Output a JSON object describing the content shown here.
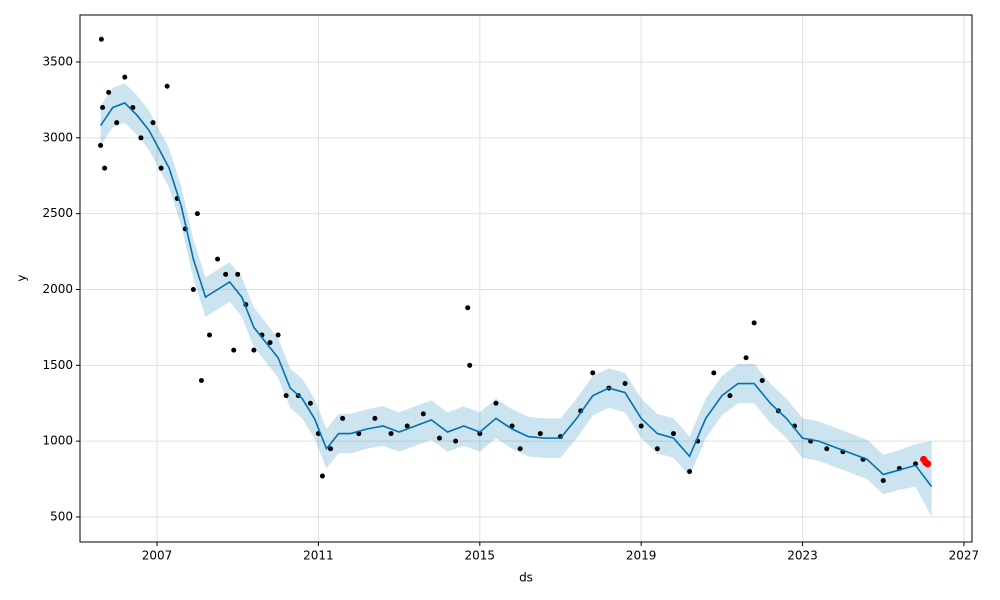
{
  "chart_data": {
    "type": "forecast",
    "x_label": "ds",
    "y_label": "y",
    "xlim": [
      2005.09,
      2027.2
    ],
    "ylim": [
      335,
      3810
    ],
    "xticks": [
      2007,
      2011,
      2015,
      2019,
      2023,
      2027
    ],
    "yticks": [
      500,
      1000,
      1500,
      2000,
      2500,
      3000,
      3500
    ],
    "grid": true,
    "x": [
      2005.6,
      2005.9,
      2006.2,
      2006.5,
      2006.8,
      2007.0,
      2007.3,
      2007.6,
      2007.9,
      2008.2,
      2008.5,
      2008.8,
      2009.1,
      2009.4,
      2009.7,
      2010.0,
      2010.3,
      2010.6,
      2010.9,
      2011.2,
      2011.5,
      2011.8,
      2012.2,
      2012.6,
      2013.0,
      2013.4,
      2013.8,
      2014.2,
      2014.6,
      2015.0,
      2015.4,
      2015.8,
      2016.2,
      2016.6,
      2017.0,
      2017.4,
      2017.8,
      2018.2,
      2018.6,
      2019.0,
      2019.4,
      2019.8,
      2020.2,
      2020.6,
      2021.0,
      2021.4,
      2021.8,
      2022.2,
      2022.6,
      2023.0,
      2023.4,
      2023.8,
      2024.2,
      2024.6,
      2025.0,
      2025.4,
      2025.8,
      2026.2
    ],
    "yhat": {
      "color": "#0072B2",
      "values": [
        3080,
        3200,
        3230,
        3150,
        3050,
        2950,
        2800,
        2550,
        2200,
        1950,
        2000,
        2050,
        1950,
        1750,
        1650,
        1550,
        1350,
        1280,
        1150,
        950,
        1050,
        1050,
        1080,
        1100,
        1060,
        1100,
        1140,
        1060,
        1100,
        1060,
        1150,
        1080,
        1030,
        1020,
        1020,
        1150,
        1300,
        1350,
        1320,
        1150,
        1050,
        1020,
        900,
        1150,
        1300,
        1380,
        1380,
        1250,
        1150,
        1020,
        1000,
        960,
        920,
        880,
        780,
        810,
        840,
        700
      ]
    },
    "band": {
      "color": "#0072B2",
      "opacity": 0.2,
      "upper": [
        3210,
        3330,
        3360,
        3280,
        3180,
        3080,
        2930,
        2680,
        2330,
        2080,
        2130,
        2180,
        2080,
        1880,
        1780,
        1680,
        1480,
        1410,
        1280,
        1080,
        1180,
        1180,
        1210,
        1230,
        1190,
        1230,
        1270,
        1190,
        1230,
        1190,
        1280,
        1210,
        1160,
        1150,
        1150,
        1280,
        1430,
        1480,
        1450,
        1280,
        1180,
        1150,
        1030,
        1280,
        1430,
        1510,
        1510,
        1380,
        1280,
        1150,
        1130,
        1090,
        1050,
        1010,
        910,
        940,
        980,
        1000
      ],
      "lower": [
        2950,
        3070,
        3100,
        3020,
        2920,
        2820,
        2670,
        2420,
        2070,
        1820,
        1870,
        1920,
        1820,
        1620,
        1520,
        1420,
        1220,
        1150,
        1020,
        820,
        920,
        920,
        950,
        970,
        930,
        970,
        1010,
        930,
        970,
        930,
        1020,
        950,
        900,
        890,
        890,
        1020,
        1170,
        1220,
        1190,
        1020,
        920,
        890,
        770,
        1020,
        1170,
        1250,
        1250,
        1120,
        1020,
        890,
        870,
        830,
        790,
        750,
        650,
        680,
        700,
        500
      ]
    },
    "observed": {
      "color": "#000000",
      "x": [
        2005.6,
        2005.62,
        2005.65,
        2005.7,
        2005.8,
        2006.0,
        2006.2,
        2006.4,
        2006.6,
        2006.9,
        2007.1,
        2007.25,
        2007.5,
        2007.7,
        2007.9,
        2008.0,
        2008.1,
        2008.3,
        2008.5,
        2008.7,
        2008.9,
        2009.0,
        2009.2,
        2009.4,
        2009.6,
        2009.8,
        2010.0,
        2010.2,
        2010.5,
        2010.8,
        2011.0,
        2011.1,
        2011.3,
        2011.6,
        2012.0,
        2012.4,
        2012.8,
        2013.2,
        2013.6,
        2014.0,
        2014.4,
        2014.7,
        2014.75,
        2015.0,
        2015.4,
        2015.8,
        2016.0,
        2016.5,
        2017.0,
        2017.5,
        2017.8,
        2018.2,
        2018.6,
        2019.0,
        2019.4,
        2019.8,
        2020.2,
        2020.4,
        2020.8,
        2021.2,
        2021.6,
        2021.8,
        2022.0,
        2022.4,
        2022.8,
        2023.2,
        2023.6,
        2024.0,
        2024.5,
        2025.0,
        2025.4,
        2025.8
      ],
      "values": [
        2950,
        3650,
        3200,
        2800,
        3300,
        3100,
        3400,
        3200,
        3000,
        3100,
        2800,
        3340,
        2600,
        2400,
        2000,
        2500,
        1400,
        1700,
        2200,
        2100,
        1600,
        2100,
        1900,
        1600,
        1700,
        1650,
        1700,
        1300,
        1300,
        1250,
        1050,
        770,
        950,
        1150,
        1050,
        1150,
        1050,
        1100,
        1180,
        1020,
        1000,
        1880,
        1500,
        1050,
        1250,
        1100,
        950,
        1050,
        1030,
        1200,
        1450,
        1350,
        1380,
        1100,
        950,
        1050,
        800,
        1000,
        1450,
        1300,
        1550,
        1780,
        1400,
        1200,
        1100,
        1000,
        950,
        930,
        880,
        740,
        820,
        850
      ]
    },
    "recent": {
      "color": "#ff0000",
      "x": [
        2026.0,
        2026.05,
        2026.1
      ],
      "values": [
        880,
        860,
        850
      ]
    }
  }
}
